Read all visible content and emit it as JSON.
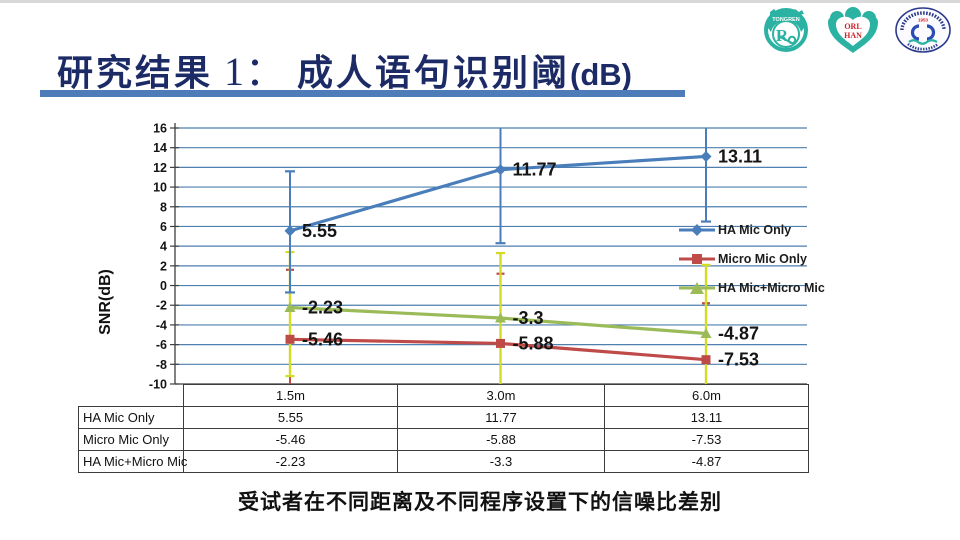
{
  "slide": {
    "title": {
      "zh1": "研究结果",
      "num": " 1： ",
      "zh2": "成人语句识别阈",
      "unit": "(dB)"
    },
    "caption": "受试者在不同距离及不同程序设置下的信噪比差别"
  },
  "logos": {
    "tongren": {
      "arc_text": "TONGREN",
      "monogram": "R"
    },
    "orlhan": {
      "line1": "ORL",
      "line2": "HAN"
    },
    "hospital": {
      "year": "1953"
    }
  },
  "chart_data": {
    "type": "line",
    "title": "",
    "ylabel": "SNR(dB)",
    "categories": [
      "1.5m",
      "3.0m",
      "6.0m"
    ],
    "ylim": [
      -10,
      16
    ],
    "ytick_step": 2,
    "grid": true,
    "legend_position": "right-inside",
    "series": [
      {
        "name": "HA Mic Only",
        "marker": "diamond",
        "color": "#4a7ebb",
        "values": [
          5.55,
          11.77,
          13.11
        ],
        "labels": [
          "5.55",
          "11.77",
          "13.11"
        ]
      },
      {
        "name": "Micro Mic Only",
        "marker": "square",
        "color": "#be4b48",
        "values": [
          -5.46,
          -5.88,
          -7.53
        ],
        "labels": [
          "-5.46",
          "-5.88",
          "-7.53"
        ]
      },
      {
        "name": "HA Mic+Micro Mic",
        "marker": "triangle",
        "color": "#9bbb59",
        "values": [
          -2.23,
          -3.3,
          -4.87
        ],
        "labels": [
          "-2.23",
          "-3.3",
          "-4.87"
        ]
      }
    ],
    "error_bars": [
      {
        "color": "#be4b48",
        "width": 2,
        "capw": 8,
        "bars": [
          {
            "i": 0,
            "lo": -10,
            "hi": 1.6,
            "caps": [
              1.6
            ]
          },
          {
            "i": 1,
            "lo": -10,
            "hi": 1.2,
            "caps": [
              1.2
            ]
          },
          {
            "i": 2,
            "lo": -10,
            "hi": -1.8,
            "caps": [
              -1.8
            ]
          }
        ]
      },
      {
        "color": "#d3db25",
        "width": 2.4,
        "capw": 9,
        "bars": [
          {
            "i": 0,
            "lo": -9.2,
            "hi": 3.4,
            "caps": [
              3.4,
              -9.2
            ]
          },
          {
            "i": 1,
            "lo": -10,
            "hi": 3.3,
            "caps": [
              3.3
            ]
          },
          {
            "i": 2,
            "lo": -10,
            "hi": 2.1,
            "caps": [
              2.1
            ]
          }
        ]
      },
      {
        "color": "#4a7ebb",
        "width": 2,
        "capw": 10,
        "bars": [
          {
            "i": 0,
            "lo": -0.7,
            "hi": 11.6,
            "caps": [
              -0.7,
              11.6
            ]
          },
          {
            "i": 1,
            "lo": 4.3,
            "hi": 16,
            "caps": [
              4.3
            ]
          },
          {
            "i": 2,
            "lo": 6.5,
            "hi": 16,
            "caps": [
              6.5
            ]
          }
        ]
      }
    ],
    "colors": {
      "grid": "#4e7fae",
      "axis": "#3f3f3f",
      "label": "#151515"
    }
  },
  "table": {
    "col_headers": [
      "1.5m",
      "3.0m",
      "6.0m"
    ],
    "rows": [
      {
        "label": "HA Mic Only",
        "values": [
          "5.55",
          "11.77",
          "13.11"
        ]
      },
      {
        "label": "Micro Mic Only",
        "values": [
          "-5.46",
          "-5.88",
          "-7.53"
        ]
      },
      {
        "label": "HA Mic+Micro Mic",
        "values": [
          "-2.23",
          "-3.3",
          "-4.87"
        ]
      }
    ]
  }
}
